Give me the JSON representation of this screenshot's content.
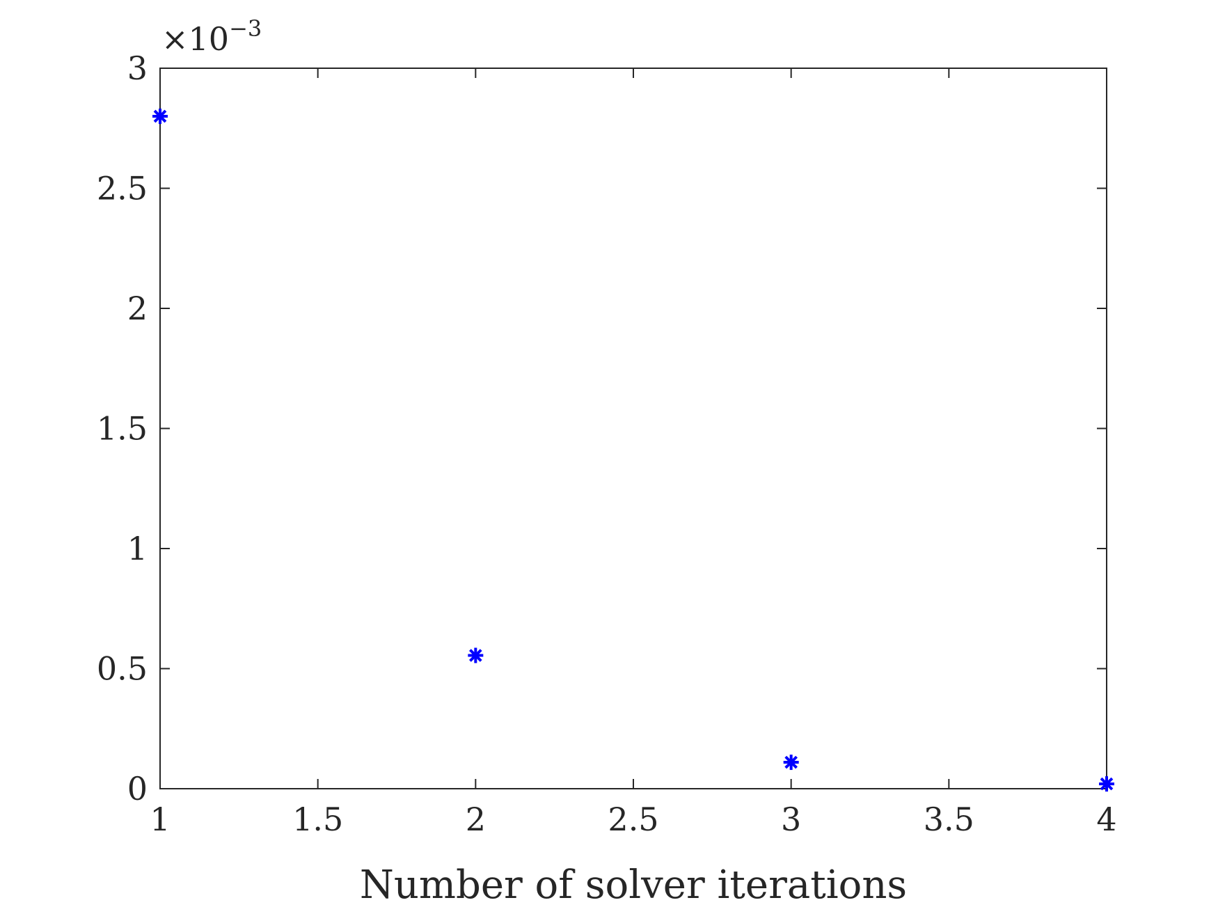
{
  "chart_data": {
    "type": "scatter",
    "title": "",
    "xlabel": "Number of solver iterations",
    "ylabel": "",
    "xlim": [
      1,
      4
    ],
    "ylim": [
      0,
      3
    ],
    "y_multiplier": {
      "base": "×10",
      "exponent": "−3"
    },
    "x_ticks": [
      "1",
      "1.5",
      "2",
      "2.5",
      "3",
      "3.5",
      "4"
    ],
    "y_ticks": [
      "0",
      "0.5",
      "1",
      "1.5",
      "2",
      "2.5",
      "3"
    ],
    "grid": false,
    "series": [
      {
        "marker": "asterisk",
        "color": "#0000ff",
        "x": [
          1,
          2,
          3,
          4
        ],
        "y": [
          2.8,
          0.555,
          0.11,
          0.02
        ]
      }
    ]
  }
}
